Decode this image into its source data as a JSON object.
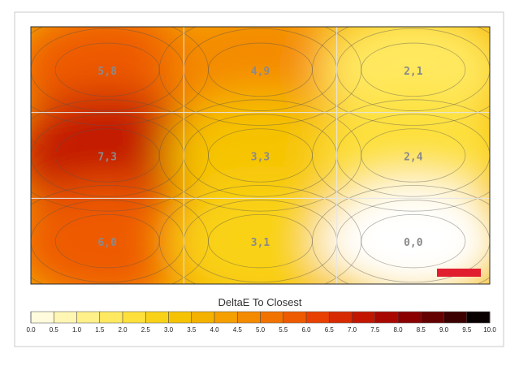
{
  "chart_data": {
    "type": "heatmap",
    "title": "",
    "xlabel": "",
    "ylabel": "",
    "grid": true,
    "legend_title": "DeltaE To Closest",
    "rows": 3,
    "cols": 3,
    "values": [
      [
        5.8,
        4.9,
        2.1
      ],
      [
        7.3,
        3.3,
        2.4
      ],
      [
        6.0,
        3.1,
        0.0
      ]
    ],
    "labels": [
      [
        "5,8",
        "4,9",
        "2,1"
      ],
      [
        "7,3",
        "3,3",
        "2,4"
      ],
      [
        "6,0",
        "3,1",
        "0,0"
      ]
    ],
    "scale": {
      "min": 0.0,
      "max": 10.0,
      "ticks": [
        "0.0",
        "0.5",
        "1.0",
        "1.5",
        "2.0",
        "2.5",
        "3.0",
        "3.5",
        "4.0",
        "4.5",
        "5.0",
        "5.5",
        "6.0",
        "6.5",
        "7.0",
        "7.5",
        "8.0",
        "8.5",
        "9.0",
        "9.5",
        "10.0"
      ],
      "colors": [
        "#ffffff",
        "#fffbdc",
        "#fff6b4",
        "#fff08a",
        "#ffe960",
        "#fde03b",
        "#f9d218",
        "#f6c304",
        "#f5b100",
        "#f59f00",
        "#f48a00",
        "#f27200",
        "#ee5a00",
        "#e84000",
        "#d72a00",
        "#c21600",
        "#a90800",
        "#8a0000",
        "#650000",
        "#3c0000",
        "#080000"
      ]
    },
    "marker_color": "#e01e2e"
  }
}
